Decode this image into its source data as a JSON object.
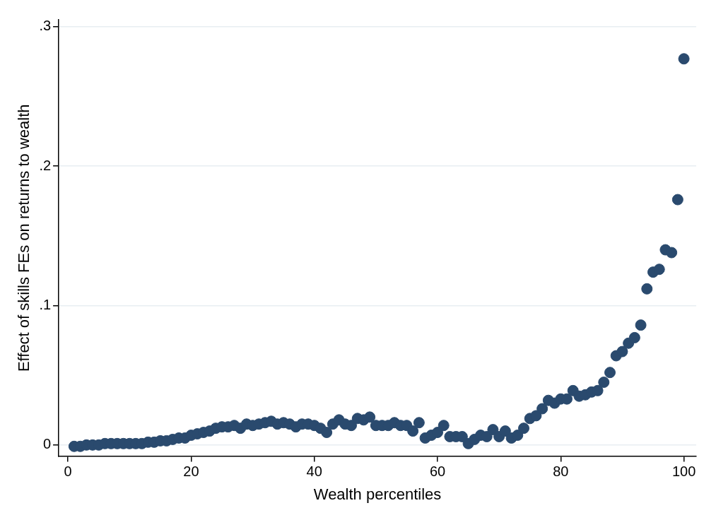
{
  "chart_data": {
    "type": "scatter",
    "xlabel": "Wealth percentiles",
    "ylabel": "Effect of skills FEs on returns to wealth",
    "x": [
      1,
      2,
      3,
      4,
      5,
      6,
      7,
      8,
      9,
      10,
      11,
      12,
      13,
      14,
      15,
      16,
      17,
      18,
      19,
      20,
      21,
      22,
      23,
      24,
      25,
      26,
      27,
      28,
      29,
      30,
      31,
      32,
      33,
      34,
      35,
      36,
      37,
      38,
      39,
      40,
      41,
      42,
      43,
      44,
      45,
      46,
      47,
      48,
      49,
      50,
      51,
      52,
      53,
      54,
      55,
      56,
      57,
      58,
      59,
      60,
      61,
      62,
      63,
      64,
      65,
      66,
      67,
      68,
      69,
      70,
      71,
      72,
      73,
      74,
      75,
      76,
      77,
      78,
      79,
      80,
      81,
      82,
      83,
      84,
      85,
      86,
      87,
      88,
      89,
      90,
      91,
      92,
      93,
      94,
      95,
      96,
      97,
      98,
      99,
      100
    ],
    "series": [
      {
        "color": "#2a4a6e",
        "values": [
          -0.001,
          -0.001,
          0,
          0,
          0,
          0.001,
          0.001,
          0.001,
          0.001,
          0.001,
          0.001,
          0.001,
          0.002,
          0.002,
          0.003,
          0.003,
          0.004,
          0.005,
          0.005,
          0.007,
          0.008,
          0.009,
          0.01,
          0.012,
          0.013,
          0.013,
          0.014,
          0.012,
          0.015,
          0.014,
          0.015,
          0.016,
          0.017,
          0.015,
          0.016,
          0.015,
          0.013,
          0.015,
          0.015,
          0.014,
          0.012,
          0.009,
          0.015,
          0.018,
          0.015,
          0.014,
          0.019,
          0.018,
          0.02,
          0.014,
          0.014,
          0.014,
          0.016,
          0.014,
          0.014,
          0.01,
          0.016,
          0.005,
          0.007,
          0.009,
          0.014,
          0.006,
          0.006,
          0.006,
          0.001,
          0.004,
          0.007,
          0.006,
          0.011,
          0.006,
          0.01,
          0.005,
          0.007,
          0.012,
          0.019,
          0.021,
          0.026,
          0.032,
          0.03,
          0.033,
          0.033,
          0.039,
          0.035,
          0.036,
          0.038,
          0.039,
          0.045,
          0.052,
          0.064,
          0.067,
          0.073,
          0.077,
          0.086,
          0.112,
          0.124,
          0.126,
          0.14,
          0.138,
          0.176,
          0.277
        ]
      }
    ],
    "xlim": [
      -1.5,
      102
    ],
    "xticks": [
      0,
      20,
      40,
      60,
      80,
      100
    ],
    "ylim": [
      -0.008,
      0.305
    ],
    "yticks": [
      {
        "value": 0,
        "label": "0"
      },
      {
        "value": 0.1,
        "label": ".1"
      },
      {
        "value": 0.2,
        "label": ".2"
      },
      {
        "value": 0.3,
        "label": ".3"
      }
    ],
    "grid": "y",
    "marker": "circle",
    "legend": false
  }
}
